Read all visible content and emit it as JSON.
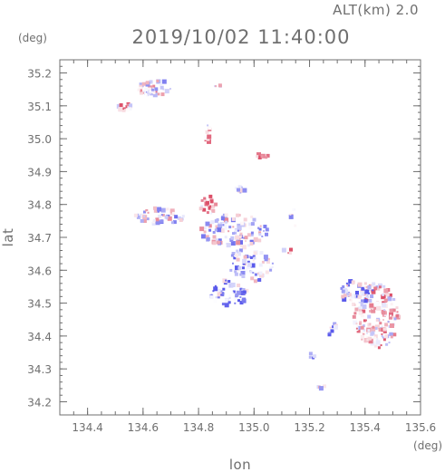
{
  "header": {
    "altitude_text": "ALT(km) 2.0",
    "datetime": "2019/10/02 11:40:00"
  },
  "chart_data": {
    "type": "scatter",
    "title": "2019/10/02 11:40:00",
    "subtitle": "ALT(km) 2.0",
    "xlabel": "lon",
    "ylabel": "lat",
    "x_unit": "(deg)",
    "y_unit": "(deg)",
    "xlim": [
      134.3,
      135.6
    ],
    "ylim": [
      34.16,
      35.24
    ],
    "xticks": [
      134.4,
      134.6,
      134.8,
      135.0,
      135.2,
      135.4,
      135.6
    ],
    "xtick_labels": [
      "134.4",
      "134.6",
      "134.8",
      "135.0",
      "135.2",
      "135.4",
      "135.6"
    ],
    "yticks": [
      34.2,
      34.3,
      34.4,
      34.5,
      34.6,
      34.7,
      34.8,
      34.9,
      35.0,
      35.1,
      35.2
    ],
    "ytick_labels": [
      "34.2",
      "34.3",
      "34.4",
      "34.5",
      "34.6",
      "34.7",
      "34.8",
      "34.9",
      "35.0",
      "35.1",
      "35.2"
    ],
    "grid": false,
    "colors": {
      "positive": "#e0506a",
      "negative": "#5a5ae6",
      "axis": "#6f6f6f"
    },
    "clusters": [
      {
        "lon": 134.535,
        "lat": 35.095,
        "rx": 0.025,
        "ry": 0.014,
        "n": 18,
        "bias": 0.3
      },
      {
        "lon": 134.64,
        "lat": 35.155,
        "rx": 0.06,
        "ry": 0.025,
        "n": 46,
        "bias": 0.0
      },
      {
        "lon": 134.87,
        "lat": 35.16,
        "rx": 0.01,
        "ry": 0.005,
        "n": 4,
        "bias": 0.0
      },
      {
        "lon": 134.835,
        "lat": 35.02,
        "rx": 0.012,
        "ry": 0.03,
        "n": 10,
        "bias": 0.2
      },
      {
        "lon": 135.03,
        "lat": 34.948,
        "rx": 0.02,
        "ry": 0.008,
        "n": 8,
        "bias": 0.5
      },
      {
        "lon": 134.95,
        "lat": 34.845,
        "rx": 0.02,
        "ry": 0.01,
        "n": 8,
        "bias": -0.3
      },
      {
        "lon": 134.835,
        "lat": 34.8,
        "rx": 0.03,
        "ry": 0.03,
        "n": 24,
        "bias": 0.6
      },
      {
        "lon": 134.66,
        "lat": 34.765,
        "rx": 0.09,
        "ry": 0.025,
        "n": 48,
        "bias": -0.1
      },
      {
        "lon": 134.93,
        "lat": 34.72,
        "rx": 0.12,
        "ry": 0.05,
        "n": 115,
        "bias": -0.1
      },
      {
        "lon": 134.99,
        "lat": 34.62,
        "rx": 0.08,
        "ry": 0.055,
        "n": 65,
        "bias": -0.3
      },
      {
        "lon": 134.91,
        "lat": 34.53,
        "rx": 0.07,
        "ry": 0.04,
        "n": 52,
        "bias": -0.5
      },
      {
        "lon": 135.14,
        "lat": 34.76,
        "rx": 0.015,
        "ry": 0.04,
        "n": 6,
        "bias": 0.0
      },
      {
        "lon": 135.12,
        "lat": 34.66,
        "rx": 0.015,
        "ry": 0.015,
        "n": 5,
        "bias": 0.3
      },
      {
        "lon": 135.44,
        "lat": 34.46,
        "rx": 0.08,
        "ry": 0.1,
        "n": 180,
        "bias": 0.25
      },
      {
        "lon": 135.37,
        "lat": 34.53,
        "rx": 0.06,
        "ry": 0.04,
        "n": 60,
        "bias": -0.4
      },
      {
        "lon": 135.28,
        "lat": 34.42,
        "rx": 0.02,
        "ry": 0.02,
        "n": 8,
        "bias": -0.5
      },
      {
        "lon": 135.21,
        "lat": 34.34,
        "rx": 0.01,
        "ry": 0.008,
        "n": 4,
        "bias": -0.8
      },
      {
        "lon": 135.24,
        "lat": 34.245,
        "rx": 0.015,
        "ry": 0.008,
        "n": 4,
        "bias": 0.0
      }
    ]
  }
}
